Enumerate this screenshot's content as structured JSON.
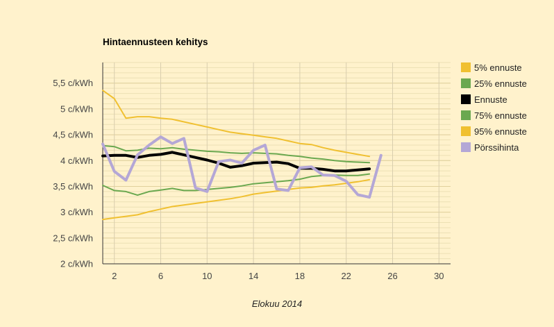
{
  "chart_data": {
    "type": "line",
    "title": "Hintaennusteen kehitys",
    "xlabel": "Elokuu 2014",
    "ylabel": "",
    "xlim": [
      1,
      31
    ],
    "ylim": [
      2,
      5.9
    ],
    "xticks": [
      2,
      6,
      10,
      14,
      18,
      22,
      26,
      30
    ],
    "yticks": [
      {
        "value": 2,
        "label": "2 c/kWh"
      },
      {
        "value": 2.5,
        "label": "2,5 c/kWh"
      },
      {
        "value": 3,
        "label": "3 c/kWh"
      },
      {
        "value": 3.5,
        "label": "3,5 c/kWh"
      },
      {
        "value": 4,
        "label": "4 c/kWh"
      },
      {
        "value": 4.5,
        "label": "4,5 c/kWh"
      },
      {
        "value": 5,
        "label": "5 c/kWh"
      },
      {
        "value": 5.5,
        "label": "5,5 c/kWh"
      }
    ],
    "grid": true,
    "legend": "right",
    "series": [
      {
        "name": "5% ennuste",
        "color": "#f0c030",
        "width": 2,
        "x": [
          1,
          2,
          3,
          4,
          5,
          6,
          7,
          8,
          9,
          10,
          11,
          12,
          13,
          14,
          15,
          16,
          17,
          18,
          19,
          20,
          21,
          22,
          23,
          24
        ],
        "values": [
          2.86,
          2.89,
          2.92,
          2.95,
          3.01,
          3.06,
          3.11,
          3.14,
          3.17,
          3.2,
          3.23,
          3.26,
          3.3,
          3.35,
          3.38,
          3.41,
          3.44,
          3.47,
          3.48,
          3.51,
          3.53,
          3.56,
          3.59,
          3.63
        ]
      },
      {
        "name": "25% ennuste",
        "color": "#6aa84f",
        "width": 2,
        "x": [
          1,
          2,
          3,
          4,
          5,
          6,
          7,
          8,
          9,
          10,
          11,
          12,
          13,
          14,
          15,
          16,
          17,
          18,
          19,
          20,
          21,
          22,
          23,
          24
        ],
        "values": [
          3.52,
          3.42,
          3.4,
          3.33,
          3.4,
          3.43,
          3.46,
          3.42,
          3.42,
          3.44,
          3.46,
          3.48,
          3.51,
          3.55,
          3.57,
          3.59,
          3.61,
          3.64,
          3.69,
          3.71,
          3.72,
          3.71,
          3.71,
          3.74
        ]
      },
      {
        "name": "Ennuste",
        "color": "#000000",
        "width": 4,
        "x": [
          1,
          2,
          3,
          4,
          5,
          6,
          7,
          8,
          9,
          10,
          11,
          12,
          13,
          14,
          15,
          16,
          17,
          18,
          19,
          20,
          21,
          22,
          23,
          24
        ],
        "values": [
          4.09,
          4.1,
          4.1,
          4.06,
          4.1,
          4.12,
          4.16,
          4.11,
          4.06,
          4.01,
          3.95,
          3.87,
          3.9,
          3.95,
          3.96,
          3.97,
          3.94,
          3.85,
          3.85,
          3.83,
          3.8,
          3.8,
          3.82,
          3.84
        ]
      },
      {
        "name": "75% ennuste",
        "color": "#6aa84f",
        "width": 2,
        "x": [
          1,
          2,
          3,
          4,
          5,
          6,
          7,
          8,
          9,
          10,
          11,
          12,
          13,
          14,
          15,
          16,
          17,
          18,
          19,
          20,
          21,
          22,
          23,
          24
        ],
        "values": [
          4.29,
          4.27,
          4.19,
          4.2,
          4.24,
          4.23,
          4.25,
          4.22,
          4.2,
          4.18,
          4.17,
          4.15,
          4.14,
          4.15,
          4.14,
          4.13,
          4.1,
          4.08,
          4.05,
          4.03,
          4.0,
          3.98,
          3.97,
          3.96
        ]
      },
      {
        "name": "95% ennuste",
        "color": "#f0c030",
        "width": 2,
        "x": [
          1,
          2,
          3,
          4,
          5,
          6,
          7,
          8,
          9,
          10,
          11,
          12,
          13,
          14,
          15,
          16,
          17,
          18,
          19,
          20,
          21,
          22,
          23,
          24
        ],
        "values": [
          5.36,
          5.2,
          4.82,
          4.85,
          4.85,
          4.82,
          4.8,
          4.75,
          4.7,
          4.65,
          4.6,
          4.55,
          4.52,
          4.49,
          4.46,
          4.43,
          4.38,
          4.33,
          4.31,
          4.25,
          4.2,
          4.16,
          4.12,
          4.08
        ]
      },
      {
        "name": "Pörssihinta",
        "color": "#b4a7d6",
        "width": 4,
        "x": [
          1,
          2,
          3,
          4,
          5,
          6,
          7,
          8,
          9,
          10,
          11,
          12,
          13,
          14,
          15,
          16,
          17,
          18,
          19,
          20,
          21,
          22,
          23,
          24,
          25
        ],
        "values": [
          4.32,
          3.79,
          3.62,
          4.11,
          4.3,
          4.46,
          4.33,
          4.43,
          3.47,
          3.4,
          3.98,
          4.01,
          3.95,
          4.2,
          4.3,
          3.45,
          3.42,
          3.86,
          3.88,
          3.72,
          3.71,
          3.6,
          3.34,
          3.29,
          4.1
        ]
      }
    ]
  }
}
